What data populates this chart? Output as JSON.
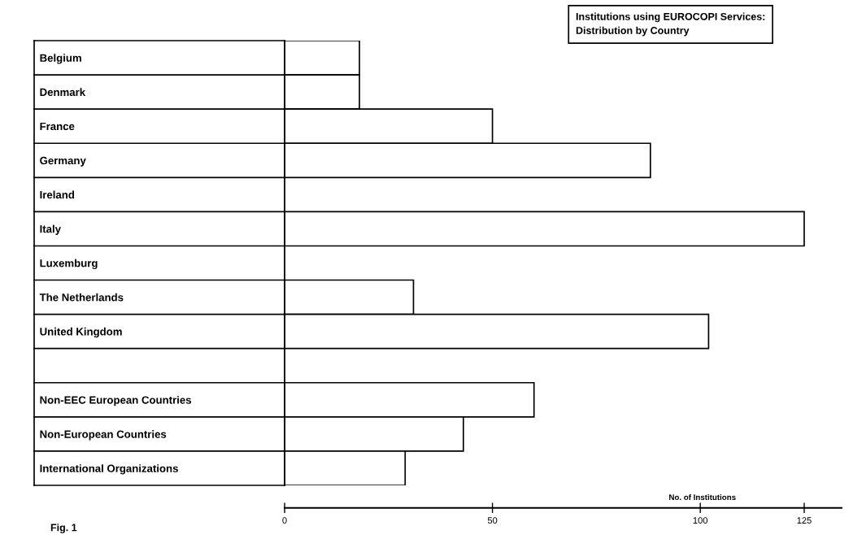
{
  "chart_data": {
    "type": "bar",
    "orientation": "horizontal",
    "title": "Institutions using EUROCOPI Services:\nDistribution by Country",
    "categories": [
      "Belgium",
      "Denmark",
      "France",
      "Germany",
      "Ireland",
      "Italy",
      "Luxemburg",
      "The Netherlands",
      "United Kingdom",
      null,
      "Non-EEC European Countries",
      "Non-European Countries",
      "International Organizations"
    ],
    "values": [
      18,
      18,
      50,
      88,
      null,
      125,
      null,
      31,
      102,
      null,
      60,
      43,
      29
    ],
    "color": "#ffffff",
    "xlabel": "No. of Institutions",
    "xlim": [
      0,
      134
    ],
    "xticks": [
      0,
      50,
      100,
      125
    ],
    "annotations": [
      "Fig. 1"
    ],
    "grid": false,
    "legend": false
  }
}
